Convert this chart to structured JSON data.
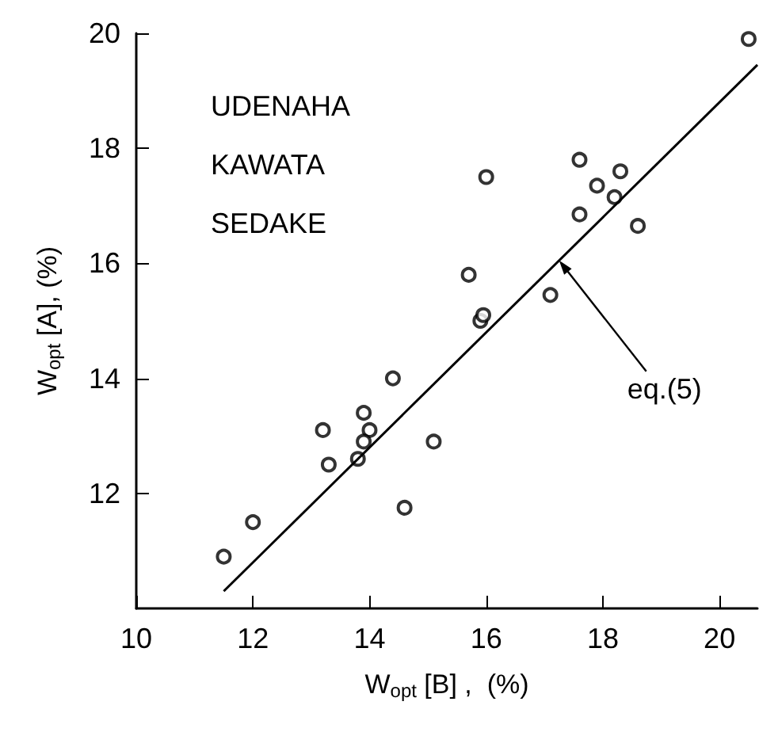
{
  "chart_data": {
    "type": "scatter",
    "xlabel": "W$_{opt}$ [B] ,  (%)",
    "ylabel": "W$_{opt}$ [A], (%)",
    "annotations": [
      "UDENAHA",
      "KAWATA",
      "SEDAKE",
      {
        "text": "eq.(5)",
        "x": 17.25,
        "y": 16.05
      }
    ],
    "series": [
      {
        "color": "#000000",
        "marker": "circle",
        "x": [
          20.5,
          16.0,
          17.6,
          18.3,
          17.9,
          18.2,
          17.6,
          18.6,
          15.7,
          17.1,
          15.9,
          15.95,
          14.4,
          13.9,
          13.2,
          14.0,
          13.9,
          13.8,
          13.3,
          15.1,
          14.6,
          12.0,
          11.5
        ],
        "values": [
          19.9,
          17.5,
          17.8,
          17.6,
          17.35,
          17.15,
          16.85,
          16.65,
          15.8,
          15.45,
          15.0,
          15.1,
          14.0,
          13.4,
          13.1,
          13.1,
          12.9,
          12.6,
          12.5,
          12.9,
          11.75,
          11.5,
          10.9
        ]
      },
      {
        "type": "line",
        "color": "#000000",
        "marker": "none",
        "line_style": "solid",
        "x": [
          11.5,
          20.65
        ],
        "values": [
          10.3,
          19.45
        ]
      }
    ],
    "xlim": [
      10,
      20.65
    ],
    "ylim": [
      10,
      20
    ],
    "xticks": [
      10,
      12,
      14,
      16,
      18,
      20
    ],
    "yticks": [
      12,
      14,
      16,
      18,
      20
    ],
    "grid": false
  }
}
